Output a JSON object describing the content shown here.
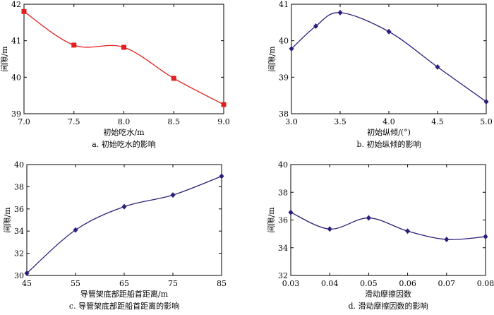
{
  "chart_data": [
    {
      "type": "line",
      "caption": "a. 初始吃水的影响",
      "xlabel": "初始吃水/m",
      "ylabel": "间隙/m",
      "xlim": [
        7.0,
        9.0
      ],
      "ylim": [
        39,
        42
      ],
      "xticks": [
        "7.0",
        "7.5",
        "8.0",
        "8.5",
        "9.0"
      ],
      "yticks": [
        "39",
        "40",
        "41",
        "42"
      ],
      "marker": "square",
      "color": "#e02020",
      "series": [
        {
          "x": [
            7.0,
            7.5,
            8.0,
            8.5,
            9.0
          ],
          "values": [
            41.8,
            40.88,
            40.82,
            39.97,
            39.25
          ]
        }
      ]
    },
    {
      "type": "line",
      "caption": "b. 初始纵倾的影响",
      "xlabel": "初始纵倾/(°)",
      "ylabel": "间隙/m",
      "xlim": [
        3.0,
        5.0
      ],
      "ylim": [
        38,
        41
      ],
      "xticks": [
        "3.0",
        "3.5",
        "4.0",
        "4.5",
        "5.0"
      ],
      "yticks": [
        "38",
        "39",
        "40",
        "41"
      ],
      "marker": "diamond",
      "color": "#2a1f7a",
      "series": [
        {
          "x": [
            3.0,
            3.25,
            3.5,
            4.0,
            4.5,
            5.0
          ],
          "values": [
            39.78,
            40.4,
            40.77,
            40.25,
            39.28,
            38.33
          ]
        }
      ]
    },
    {
      "type": "line",
      "caption": "c. 导管架底部距船首距离的影响",
      "xlabel": "导管架底部距船首距离/m",
      "ylabel": "间隙/m",
      "xlim": [
        45,
        85
      ],
      "ylim": [
        30,
        40
      ],
      "xticks": [
        "45",
        "55",
        "65",
        "75",
        "85"
      ],
      "yticks": [
        "30",
        "32",
        "34",
        "36",
        "38",
        "40"
      ],
      "marker": "diamond",
      "color": "#2a1f7a",
      "series": [
        {
          "x": [
            45,
            55,
            65,
            75,
            85
          ],
          "values": [
            30.2,
            34.1,
            36.2,
            37.25,
            38.95
          ]
        }
      ]
    },
    {
      "type": "line",
      "caption": "d. 滑动摩擦因数的影响",
      "xlabel": "滑动摩擦因数",
      "ylabel": "间隙/m",
      "xlim": [
        0.03,
        0.08
      ],
      "ylim": [
        32,
        40
      ],
      "xticks": [
        "0.03",
        "0.04",
        "0.05",
        "0.06",
        "0.07",
        "0.08"
      ],
      "yticks": [
        "32",
        "34",
        "36",
        "38",
        "40"
      ],
      "marker": "diamond",
      "color": "#2a1f7a",
      "series": [
        {
          "x": [
            0.03,
            0.04,
            0.05,
            0.06,
            0.07,
            0.08
          ],
          "values": [
            36.55,
            35.35,
            36.15,
            35.2,
            34.6,
            34.8
          ]
        }
      ]
    }
  ]
}
